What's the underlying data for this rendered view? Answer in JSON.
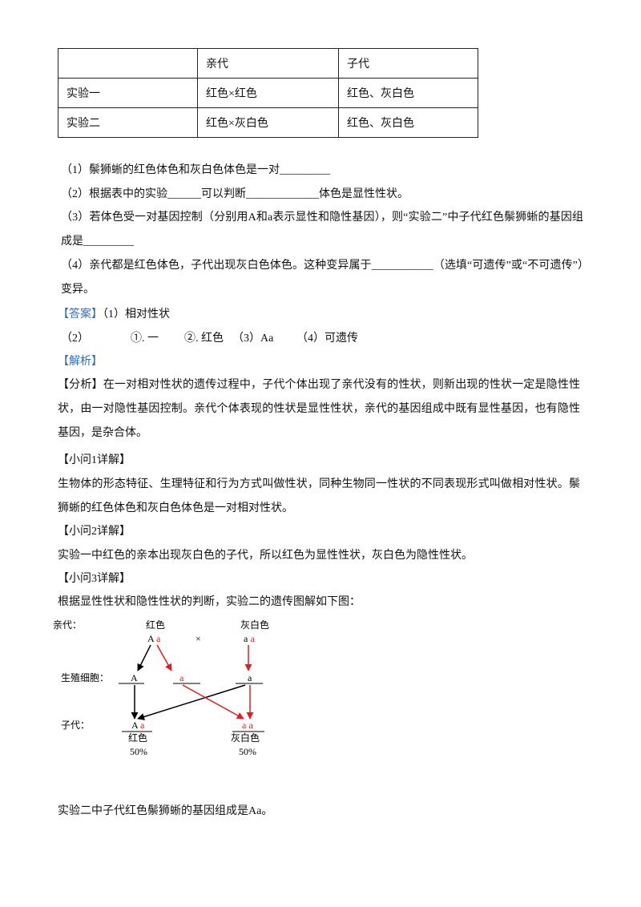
{
  "table": {
    "header": [
      "亲代",
      "子代"
    ],
    "rows": [
      [
        "实验一",
        "红色×红色",
        "红色、灰白色"
      ],
      [
        "实验二",
        "红色×灰白色",
        "红色、灰白色"
      ]
    ]
  },
  "questions": [
    "（1）鬃狮蜥的红色体色和灰白色体色是一对_________",
    "（2）根据表中的实验______可以判断_____________体色是显性性状。",
    "（3）若体色受一对基因控制（分别用A和a表示显性和隐性基因），则“实验二”中子代红色鬃狮蜥的基因组成是_________",
    "（4）亲代都是红色体色，子代出现灰白色体色。这种变异属于___________（选填“可遗传”或“不可遗传”）变异。"
  ],
  "answer": {
    "label": "【答案】",
    "items": [
      "（1）相对性状",
      "（2）",
      "①. 一",
      "②. 红色",
      "（3）Aa",
      "（4）可遗传"
    ]
  },
  "analysis": {
    "label": "【解析】",
    "overview": "【分析】在一对相对性状的遗传过程中，子代个体出现了亲代没有的性状，则新出现的性状一定是隐性性状，由一对隐性基因控制。亲代个体表现的性状是显性性状，亲代的基因组成中既有显性基因，也有隐性基因，是杂合体。",
    "sections": [
      {
        "heading": "【小问1详解】",
        "text": "生物体的形态特征、生理特征和行为方式叫做性状，同种生物同一性状的不同表现形式叫做相对性状。鬃狮蜥的红色体色和灰白色体色是一对相对性状。"
      },
      {
        "heading": "【小问2详解】",
        "text": "实验一中红色的亲本出现灰白色的子代，所以红色为显性性状，灰白色为隐性性状。"
      },
      {
        "heading": "【小问3详解】",
        "text": "根据显性性状和隐性性状的判断，实验二的遗传图解如下图："
      }
    ],
    "conclusion": "实验二中子代红色鬃狮蜥的基因组成是Aa。"
  },
  "diagram": {
    "row_labels": [
      "亲代：",
      "生殖细胞：",
      "子代："
    ],
    "parents": [
      {
        "phenotype": "红色",
        "genotype": [
          "A",
          "a"
        ]
      },
      {
        "phenotype": "灰白色",
        "genotype": [
          "a",
          "a"
        ]
      }
    ],
    "cross": "×",
    "gametes": [
      "A",
      "a",
      "a"
    ],
    "offspring": [
      {
        "genotype": [
          "A",
          "a"
        ],
        "phenotype": "红色",
        "ratio": "50%"
      },
      {
        "genotype": [
          "a",
          "a"
        ],
        "phenotype": "灰白色",
        "ratio": "50%"
      }
    ]
  }
}
